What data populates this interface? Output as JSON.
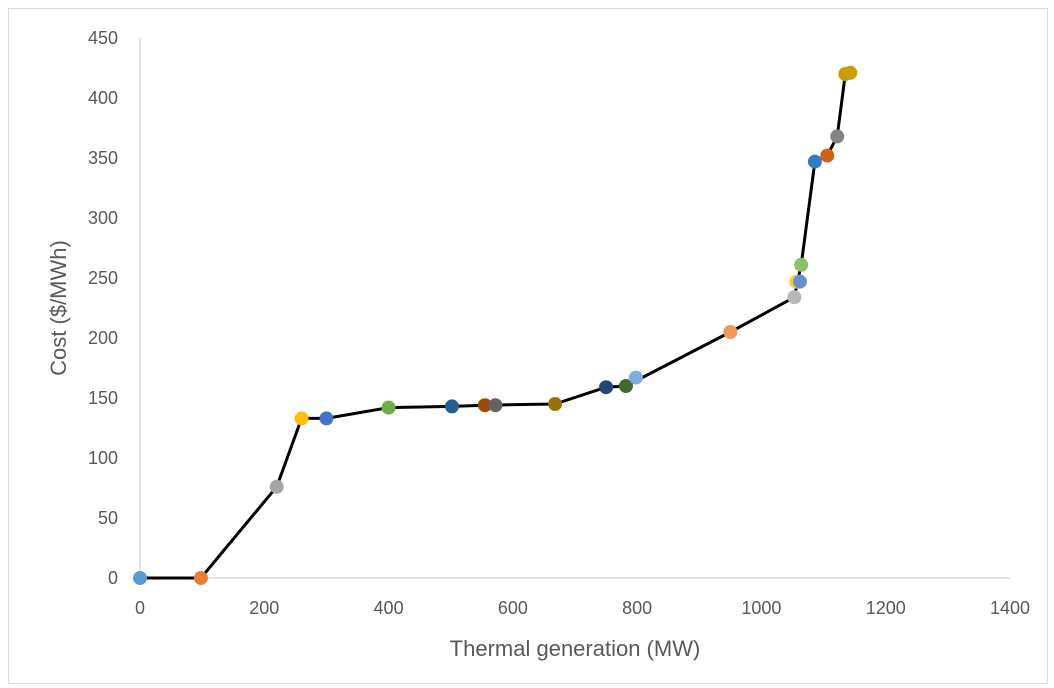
{
  "chart_data": {
    "type": "scatter",
    "title": "",
    "xlabel": "Thermal generation (MW)",
    "ylabel": "Cost ($/MWh)",
    "xlim": [
      0,
      1400
    ],
    "ylim": [
      0,
      450
    ],
    "x_ticks": [
      "0",
      "200",
      "400",
      "600",
      "800",
      "1000",
      "1200",
      "1400"
    ],
    "y_ticks": [
      "0",
      "50",
      "100",
      "150",
      "200",
      "250",
      "300",
      "350",
      "400",
      "450"
    ],
    "grid": false,
    "legend": "none",
    "points": [
      {
        "x": 0,
        "y": 0,
        "color": "#5b9bd5"
      },
      {
        "x": 98,
        "y": 0,
        "color": "#ed7d31"
      },
      {
        "x": 220,
        "y": 76,
        "color": "#a5a5a5"
      },
      {
        "x": 260,
        "y": 133,
        "color": "#ffc000"
      },
      {
        "x": 300,
        "y": 133,
        "color": "#4472c4"
      },
      {
        "x": 400,
        "y": 142,
        "color": "#70ad47"
      },
      {
        "x": 502,
        "y": 143,
        "color": "#255e91"
      },
      {
        "x": 555,
        "y": 144,
        "color": "#9e480e"
      },
      {
        "x": 572,
        "y": 144,
        "color": "#636363"
      },
      {
        "x": 668,
        "y": 145,
        "color": "#997300"
      },
      {
        "x": 750,
        "y": 159,
        "color": "#264478"
      },
      {
        "x": 782,
        "y": 160,
        "color": "#43682b"
      },
      {
        "x": 798,
        "y": 167,
        "color": "#7cafdd"
      },
      {
        "x": 950,
        "y": 205,
        "color": "#f1975a"
      },
      {
        "x": 1053,
        "y": 234,
        "color": "#b7b7b7"
      },
      {
        "x": 1056,
        "y": 247,
        "color": "#ffcd33"
      },
      {
        "x": 1062,
        "y": 247,
        "color": "#698ed0"
      },
      {
        "x": 1064,
        "y": 261,
        "color": "#8cc168"
      },
      {
        "x": 1086,
        "y": 347,
        "color": "#327dc2"
      },
      {
        "x": 1106,
        "y": 352,
        "color": "#d26012"
      },
      {
        "x": 1122,
        "y": 368,
        "color": "#848484"
      },
      {
        "x": 1135,
        "y": 420,
        "color": "#cc9a00"
      },
      {
        "x": 1143,
        "y": 421,
        "color": "#c9a000"
      }
    ],
    "line": {
      "color": "#000000",
      "x": [
        0,
        98,
        220,
        260,
        300,
        400,
        502,
        555,
        668,
        750,
        782,
        950,
        1053,
        1058,
        1064,
        1086,
        1106,
        1122,
        1135,
        1143
      ],
      "y": [
        0,
        0,
        76,
        133,
        133,
        142,
        143,
        144,
        145,
        159,
        160,
        205,
        234,
        247,
        261,
        347,
        352,
        368,
        420,
        421
      ]
    }
  }
}
